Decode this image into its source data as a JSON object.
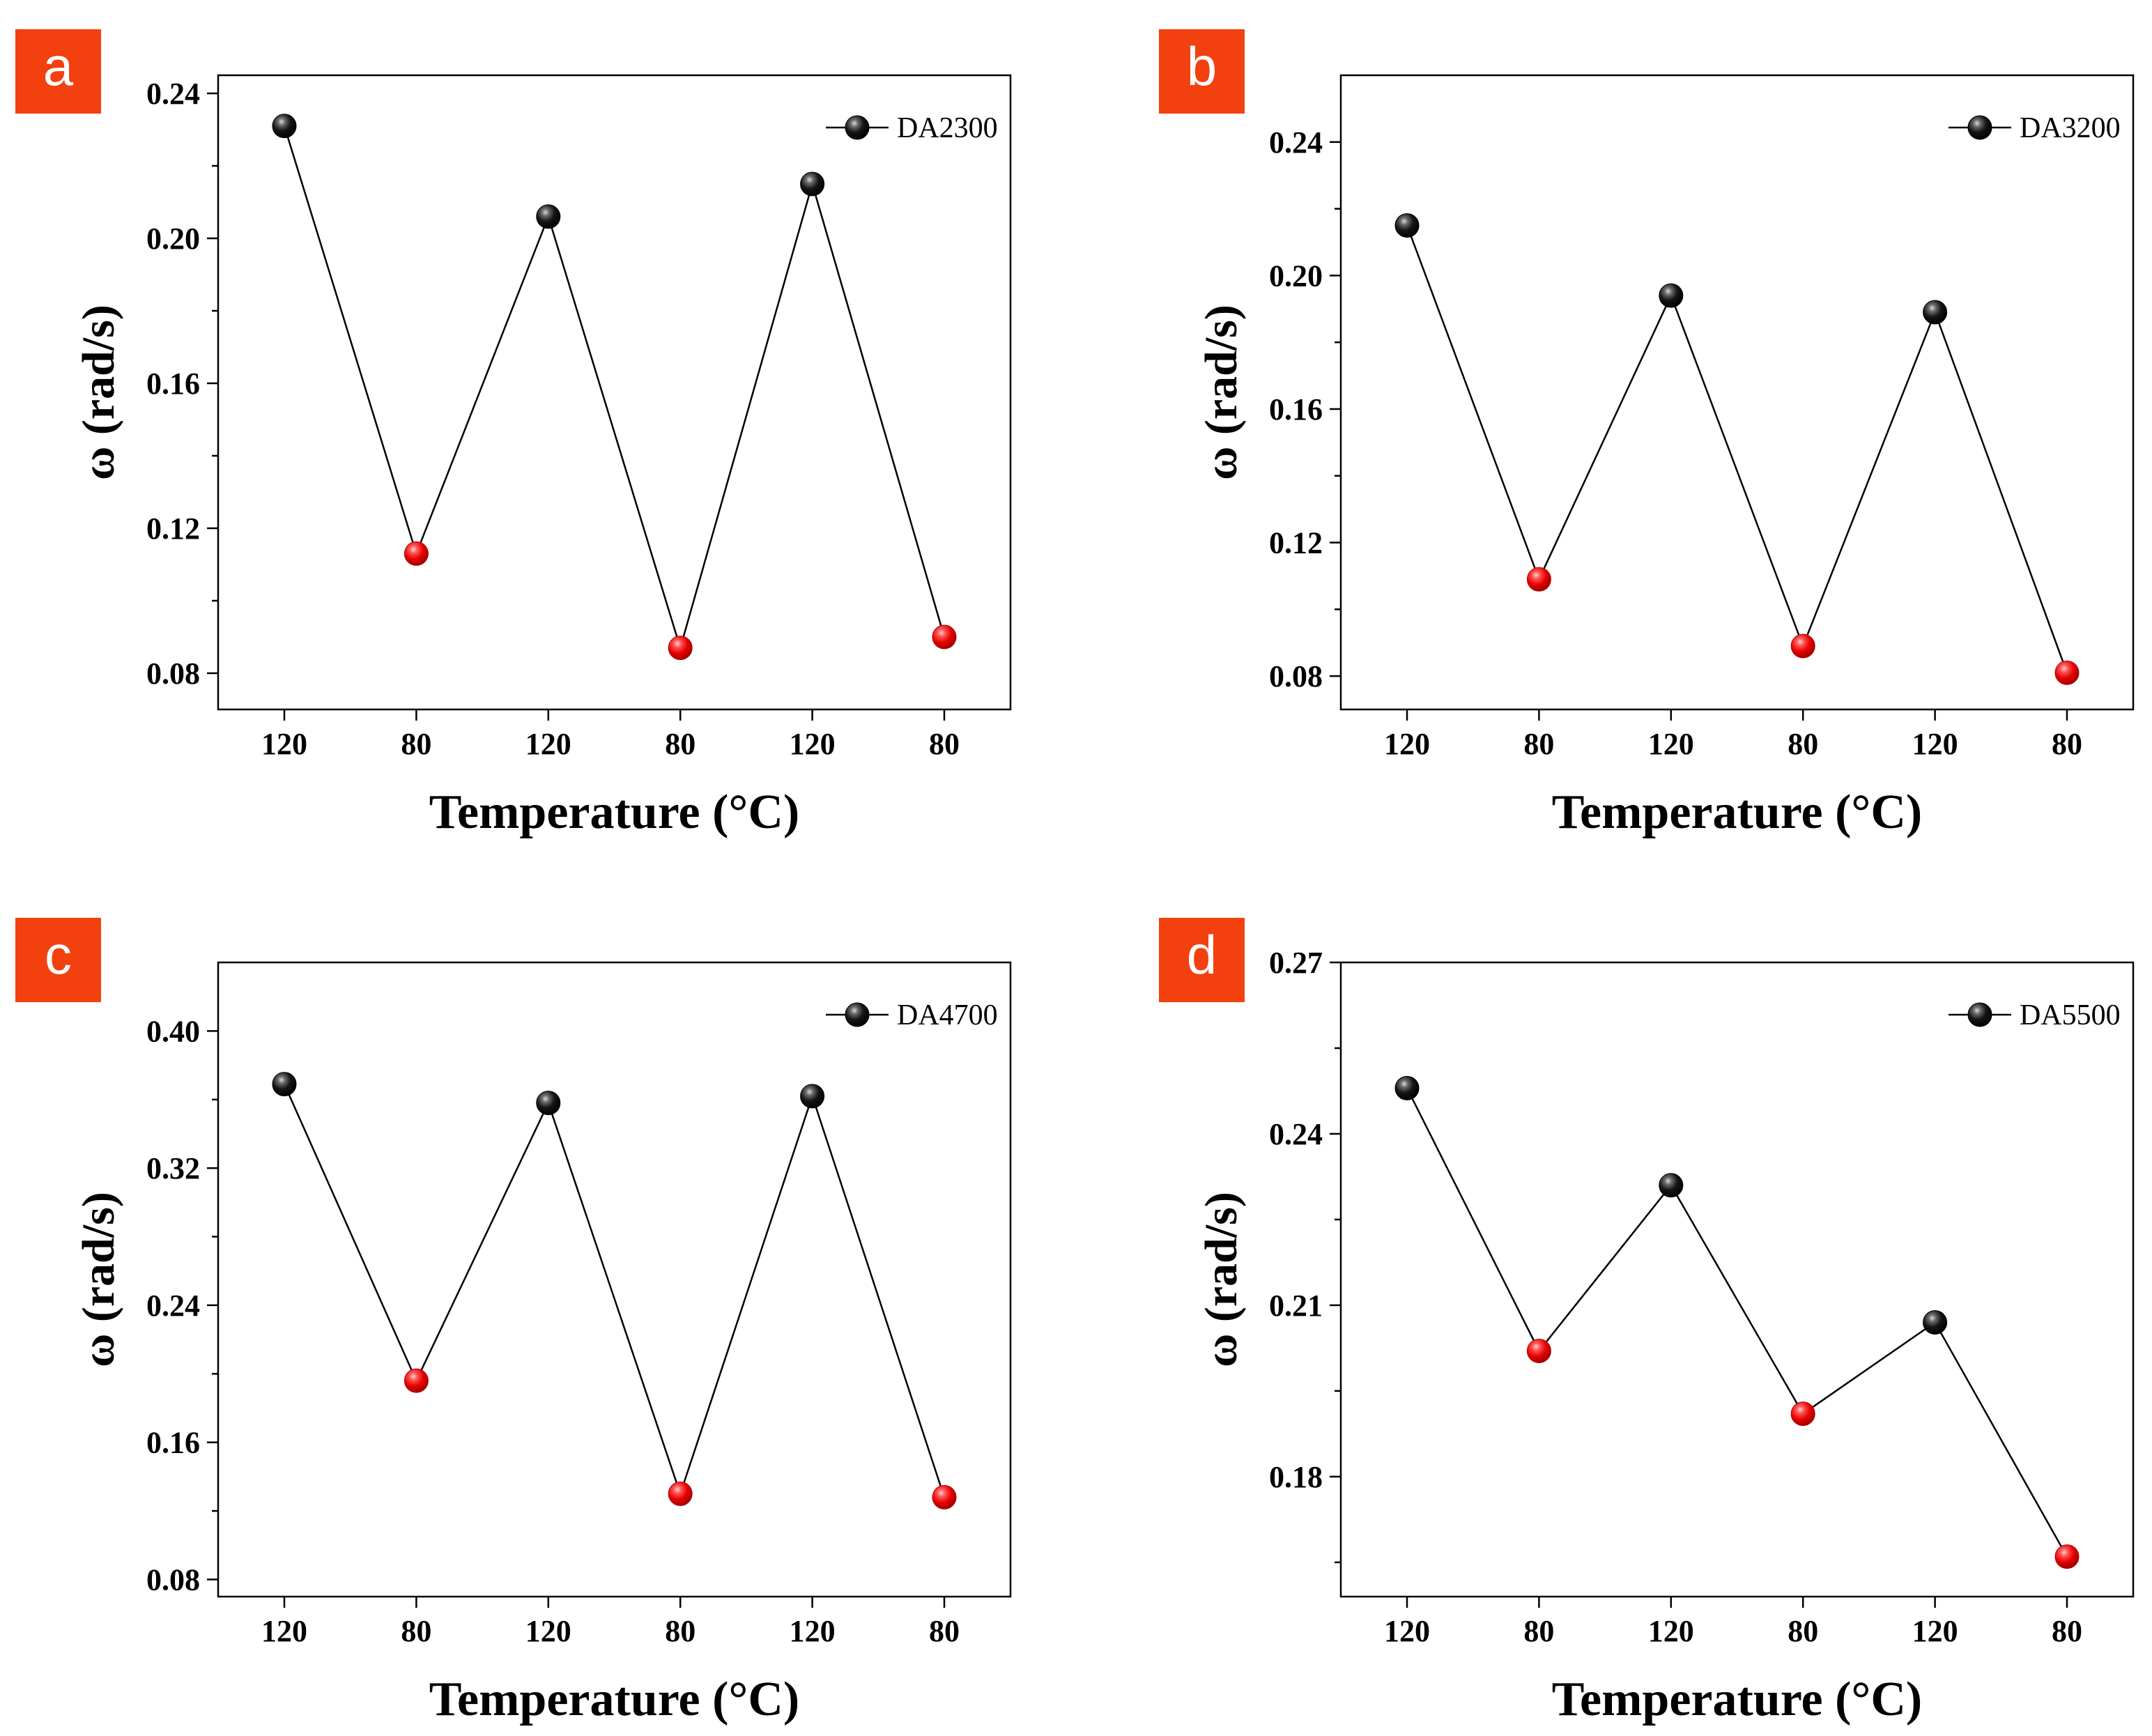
{
  "figure": {
    "colors": {
      "label_bg": "#f2410f",
      "label_text": "#ffffff",
      "high_marker": "#000000",
      "low_marker": "#ff0000",
      "line": "#000000"
    }
  },
  "chart_data": [
    {
      "type": "line",
      "panel": "a",
      "legend": "DA2300",
      "legend_position": "top-right",
      "categories": [
        "120",
        "80",
        "120",
        "80",
        "120",
        "80"
      ],
      "values": [
        0.231,
        0.113,
        0.206,
        0.087,
        0.215,
        0.09
      ],
      "xlabel": "Temperature (°C)",
      "ylabel": "ω (rad/s)",
      "ylim": [
        0.07,
        0.245
      ],
      "yticks": [
        0.08,
        0.12,
        0.16,
        0.2,
        0.24
      ],
      "ytick_labels": [
        "0.08",
        "0.12",
        "0.16",
        "0.20",
        "0.24"
      ],
      "yminor": [
        0.1,
        0.14,
        0.18,
        0.22
      ]
    },
    {
      "type": "line",
      "panel": "b",
      "legend": "DA3200",
      "legend_position": "top-right",
      "categories": [
        "120",
        "80",
        "120",
        "80",
        "120",
        "80"
      ],
      "values": [
        0.215,
        0.109,
        0.194,
        0.089,
        0.189,
        0.081
      ],
      "xlabel": "Temperature (°C)",
      "ylabel": "ω (rad/s)",
      "ylim": [
        0.07,
        0.26
      ],
      "yticks": [
        0.08,
        0.12,
        0.16,
        0.2,
        0.24
      ],
      "ytick_labels": [
        "0.08",
        "0.12",
        "0.16",
        "0.20",
        "0.24"
      ],
      "yminor": [
        0.1,
        0.14,
        0.18,
        0.22
      ]
    },
    {
      "type": "line",
      "panel": "c",
      "legend": "DA4700",
      "legend_position": "top-right",
      "categories": [
        "120",
        "80",
        "120",
        "80",
        "120",
        "80"
      ],
      "values": [
        0.369,
        0.196,
        0.358,
        0.13,
        0.362,
        0.128
      ],
      "xlabel": "Temperature (°C)",
      "ylabel": "ω (rad/s)",
      "ylim": [
        0.07,
        0.44
      ],
      "yticks": [
        0.08,
        0.16,
        0.24,
        0.32,
        0.4
      ],
      "ytick_labels": [
        "0.08",
        "0.16",
        "0.24",
        "0.32",
        "0.40"
      ],
      "yminor": [
        0.12,
        0.2,
        0.28,
        0.36
      ]
    },
    {
      "type": "line",
      "panel": "d",
      "legend": "DA5500",
      "legend_position": "top-right",
      "categories": [
        "120",
        "80",
        "120",
        "80",
        "120",
        "80"
      ],
      "values": [
        0.248,
        0.202,
        0.231,
        0.191,
        0.207,
        0.166
      ],
      "xlabel": "Temperature (°C)",
      "ylabel": "ω (rad/s)",
      "ylim": [
        0.159,
        0.27
      ],
      "yticks": [
        0.18,
        0.21,
        0.24,
        0.27
      ],
      "ytick_labels": [
        "0.18",
        "0.21",
        "0.24",
        "0.27"
      ],
      "yminor": [
        0.165,
        0.195,
        0.225,
        0.255
      ]
    }
  ]
}
